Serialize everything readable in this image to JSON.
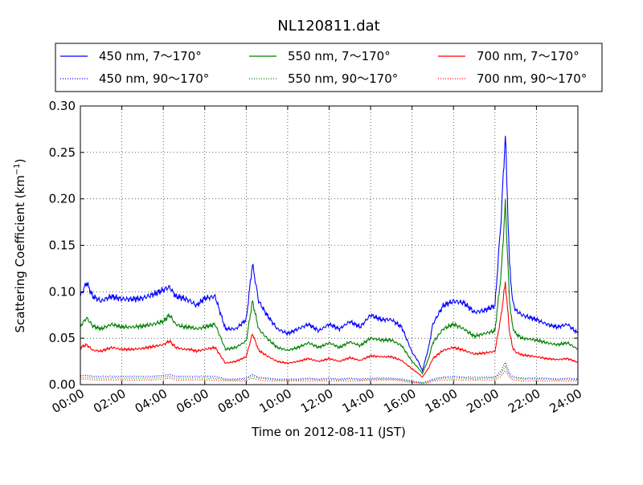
{
  "chart_data": {
    "type": "line",
    "title": "NL120811.dat",
    "xlabel": "Time on 2012-08-11 (JST)",
    "ylabel": "Scattering Coefficient (km",
    "ylabel_sup": "−1",
    "ylabel_close": ")",
    "xlim": [
      0,
      24
    ],
    "ylim": [
      0,
      0.3
    ],
    "grid": true,
    "legend_placement": "top, above plot",
    "x_ticks": [
      0,
      2,
      4,
      6,
      8,
      10,
      12,
      14,
      16,
      18,
      20,
      22,
      24
    ],
    "x_tick_labels": [
      "00:00",
      "02:00",
      "04:00",
      "06:00",
      "08:00",
      "10:00",
      "12:00",
      "14:00",
      "16:00",
      "18:00",
      "20:00",
      "22:00",
      "24:00"
    ],
    "y_ticks": [
      0,
      0.05,
      0.1,
      0.15,
      0.2,
      0.25,
      0.3
    ],
    "y_tick_labels": [
      "0.00",
      "0.05",
      "0.10",
      "0.15",
      "0.20",
      "0.25",
      "0.30"
    ],
    "x_hours": [
      0,
      0.3,
      0.6,
      1,
      1.5,
      2,
      2.5,
      3,
      3.5,
      4,
      4.3,
      4.6,
      5,
      5.3,
      5.6,
      6,
      6.5,
      7,
      7.5,
      8,
      8.3,
      8.6,
      9,
      9.5,
      10,
      10.5,
      11,
      11.5,
      12,
      12.5,
      13,
      13.5,
      14,
      14.5,
      15,
      15.5,
      16,
      16.3,
      16.5,
      16.8,
      17,
      17.5,
      18,
      18.5,
      19,
      19.5,
      20,
      20.3,
      20.5,
      20.7,
      20.85,
      21,
      21.3,
      22,
      22.5,
      23,
      23.5,
      24
    ],
    "series": [
      {
        "name": "450 nm, 7～170°",
        "style": "solid",
        "color": "#0000ff",
        "values": [
          0.095,
          0.11,
          0.095,
          0.09,
          0.095,
          0.092,
          0.092,
          0.093,
          0.097,
          0.102,
          0.105,
          0.095,
          0.093,
          0.09,
          0.085,
          0.093,
          0.095,
          0.06,
          0.06,
          0.07,
          0.13,
          0.09,
          0.075,
          0.06,
          0.055,
          0.06,
          0.065,
          0.058,
          0.065,
          0.06,
          0.068,
          0.062,
          0.075,
          0.07,
          0.07,
          0.062,
          0.035,
          0.025,
          0.015,
          0.04,
          0.065,
          0.085,
          0.09,
          0.088,
          0.078,
          0.08,
          0.085,
          0.18,
          0.27,
          0.13,
          0.09,
          0.08,
          0.075,
          0.07,
          0.065,
          0.062,
          0.065,
          0.055
        ]
      },
      {
        "name": "550 nm, 7～170°",
        "style": "solid",
        "color": "#008000",
        "values": [
          0.063,
          0.072,
          0.063,
          0.06,
          0.065,
          0.062,
          0.062,
          0.063,
          0.065,
          0.068,
          0.075,
          0.065,
          0.062,
          0.062,
          0.06,
          0.062,
          0.065,
          0.038,
          0.04,
          0.047,
          0.09,
          0.06,
          0.05,
          0.04,
          0.037,
          0.04,
          0.045,
          0.04,
          0.045,
          0.04,
          0.046,
          0.042,
          0.05,
          0.048,
          0.048,
          0.042,
          0.025,
          0.018,
          0.012,
          0.028,
          0.045,
          0.06,
          0.065,
          0.06,
          0.052,
          0.055,
          0.058,
          0.12,
          0.195,
          0.09,
          0.062,
          0.055,
          0.05,
          0.048,
          0.045,
          0.043,
          0.045,
          0.038
        ]
      },
      {
        "name": "700 nm, 7～170°",
        "style": "solid",
        "color": "#ff0000",
        "values": [
          0.04,
          0.043,
          0.037,
          0.036,
          0.04,
          0.038,
          0.038,
          0.039,
          0.041,
          0.043,
          0.047,
          0.04,
          0.038,
          0.038,
          0.036,
          0.038,
          0.04,
          0.023,
          0.025,
          0.03,
          0.055,
          0.037,
          0.031,
          0.025,
          0.023,
          0.025,
          0.028,
          0.025,
          0.028,
          0.025,
          0.029,
          0.026,
          0.031,
          0.03,
          0.03,
          0.026,
          0.017,
          0.012,
          0.008,
          0.018,
          0.028,
          0.037,
          0.04,
          0.037,
          0.033,
          0.034,
          0.036,
          0.075,
          0.11,
          0.057,
          0.04,
          0.035,
          0.032,
          0.03,
          0.028,
          0.027,
          0.028,
          0.024
        ]
      },
      {
        "name": "450 nm, 90～170°",
        "style": "dotted",
        "color": "#0000ff",
        "values": [
          0.01,
          0.01,
          0.009,
          0.009,
          0.009,
          0.009,
          0.009,
          0.009,
          0.009,
          0.01,
          0.011,
          0.009,
          0.009,
          0.009,
          0.009,
          0.009,
          0.009,
          0.006,
          0.006,
          0.007,
          0.011,
          0.008,
          0.007,
          0.006,
          0.006,
          0.006,
          0.007,
          0.006,
          0.007,
          0.006,
          0.007,
          0.006,
          0.007,
          0.007,
          0.007,
          0.006,
          0.004,
          0.003,
          0.002,
          0.004,
          0.006,
          0.008,
          0.009,
          0.008,
          0.008,
          0.008,
          0.008,
          0.015,
          0.024,
          0.012,
          0.009,
          0.008,
          0.007,
          0.007,
          0.007,
          0.006,
          0.007,
          0.006
        ]
      },
      {
        "name": "550 nm, 90～170°",
        "style": "dotted",
        "color": "#008000",
        "values": [
          0.008,
          0.008,
          0.007,
          0.007,
          0.007,
          0.007,
          0.007,
          0.007,
          0.007,
          0.008,
          0.009,
          0.007,
          0.007,
          0.007,
          0.007,
          0.007,
          0.007,
          0.005,
          0.005,
          0.006,
          0.009,
          0.007,
          0.006,
          0.005,
          0.005,
          0.005,
          0.006,
          0.005,
          0.006,
          0.005,
          0.006,
          0.005,
          0.006,
          0.006,
          0.006,
          0.005,
          0.003,
          0.002,
          0.002,
          0.003,
          0.005,
          0.007,
          0.007,
          0.007,
          0.006,
          0.007,
          0.007,
          0.012,
          0.02,
          0.01,
          0.007,
          0.007,
          0.006,
          0.006,
          0.006,
          0.005,
          0.006,
          0.005
        ]
      },
      {
        "name": "700 nm, 90～170°",
        "style": "dotted",
        "color": "#ff0000",
        "values": [
          0.006,
          0.006,
          0.005,
          0.005,
          0.005,
          0.005,
          0.005,
          0.005,
          0.005,
          0.006,
          0.007,
          0.005,
          0.005,
          0.005,
          0.005,
          0.005,
          0.005,
          0.004,
          0.004,
          0.004,
          0.007,
          0.005,
          0.004,
          0.004,
          0.004,
          0.004,
          0.004,
          0.004,
          0.004,
          0.004,
          0.004,
          0.004,
          0.005,
          0.005,
          0.005,
          0.004,
          0.002,
          0.002,
          0.001,
          0.002,
          0.004,
          0.005,
          0.005,
          0.005,
          0.005,
          0.005,
          0.005,
          0.009,
          0.015,
          0.008,
          0.005,
          0.005,
          0.004,
          0.004,
          0.004,
          0.004,
          0.004,
          0.004
        ]
      }
    ]
  }
}
